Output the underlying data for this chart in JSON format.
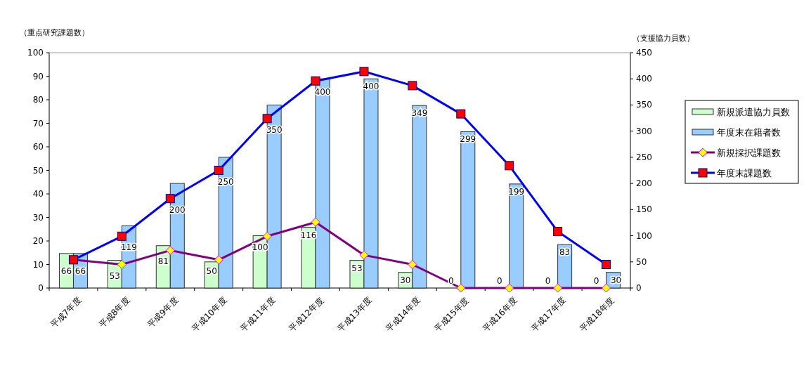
{
  "chart_data": {
    "type": "bar",
    "categories": [
      "平成7年度",
      "平成8年度",
      "平成9年度",
      "平成10年度",
      "平成11年度",
      "平成12年度",
      "平成13年度",
      "平成14年度",
      "平成15年度",
      "平成16年度",
      "平成17年度",
      "平成18年度"
    ],
    "ylabel": "（重点研究課題数）",
    "y2label": "（支援協力員数）",
    "ylim": [
      0,
      100
    ],
    "yticks": [
      0,
      10,
      20,
      30,
      40,
      50,
      60,
      70,
      80,
      90,
      100
    ],
    "y2lim": [
      0,
      450
    ],
    "y2ticks": [
      0,
      50,
      100,
      150,
      200,
      250,
      300,
      350,
      400,
      450
    ],
    "grid": false,
    "legend": "right",
    "series": [
      {
        "name": "新規派遣協力員数",
        "type": "bar",
        "axis": "y2",
        "color": "#ccffcc",
        "data_labels": true,
        "values": [
          66,
          53,
          81,
          50,
          100,
          116,
          53,
          30,
          0,
          0,
          0,
          0
        ]
      },
      {
        "name": "年度末在籍者数",
        "type": "bar",
        "axis": "y2",
        "color": "#99ccff",
        "data_labels": true,
        "values": [
          66,
          119,
          200,
          250,
          350,
          400,
          400,
          349,
          299,
          199,
          83,
          30
        ]
      },
      {
        "name": "新規採択課題数",
        "type": "line",
        "axis": "y",
        "color": "#800080",
        "marker": "diamond",
        "values": [
          12,
          10,
          16,
          12,
          22,
          28,
          14,
          10,
          0,
          0,
          0,
          0
        ]
      },
      {
        "name": "年度末課題数",
        "type": "line",
        "axis": "y",
        "color": "#0000ff",
        "marker": "square",
        "values": [
          12,
          22,
          38,
          50,
          72,
          88,
          92,
          86,
          74,
          52,
          24,
          10
        ]
      }
    ]
  }
}
